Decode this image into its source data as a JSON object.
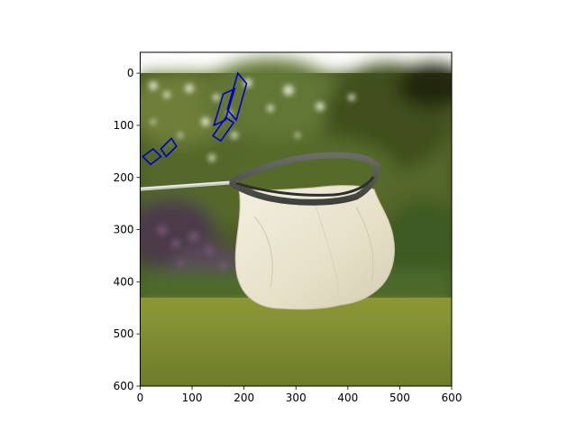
{
  "chart_data": {
    "type": "image",
    "title": "",
    "xlabel": "",
    "ylabel": "",
    "xlim": [
      0,
      600
    ],
    "ylim": [
      600,
      -40
    ],
    "image_extent": {
      "x": [
        0,
        600
      ],
      "y": [
        600,
        0
      ]
    },
    "x_ticks": [
      0,
      100,
      200,
      300,
      400,
      500,
      600
    ],
    "y_ticks": [
      0,
      100,
      200,
      300,
      400,
      500,
      600
    ],
    "grid": false,
    "annotation_color": "#0000cc",
    "annotations": [
      {
        "corners": [
          [
            142,
            100
          ],
          [
            164,
            90
          ],
          [
            182,
            30
          ],
          [
            160,
            40
          ]
        ]
      },
      {
        "corners": [
          [
            188,
            0
          ],
          [
            205,
            20
          ],
          [
            185,
            90
          ],
          [
            168,
            70
          ]
        ]
      },
      {
        "corners": [
          [
            140,
            120
          ],
          [
            155,
            130
          ],
          [
            180,
            95
          ],
          [
            165,
            85
          ]
        ]
      },
      {
        "corners": [
          [
            40,
            145
          ],
          [
            50,
            160
          ],
          [
            70,
            140
          ],
          [
            60,
            125
          ]
        ]
      },
      {
        "corners": [
          [
            5,
            160
          ],
          [
            20,
            175
          ],
          [
            40,
            160
          ],
          [
            25,
            145
          ]
        ]
      }
    ],
    "scene": {
      "background": "blurred green foliage with white flowers over a mown lawn",
      "subject": "white butterfly net on a metal handle"
    }
  }
}
